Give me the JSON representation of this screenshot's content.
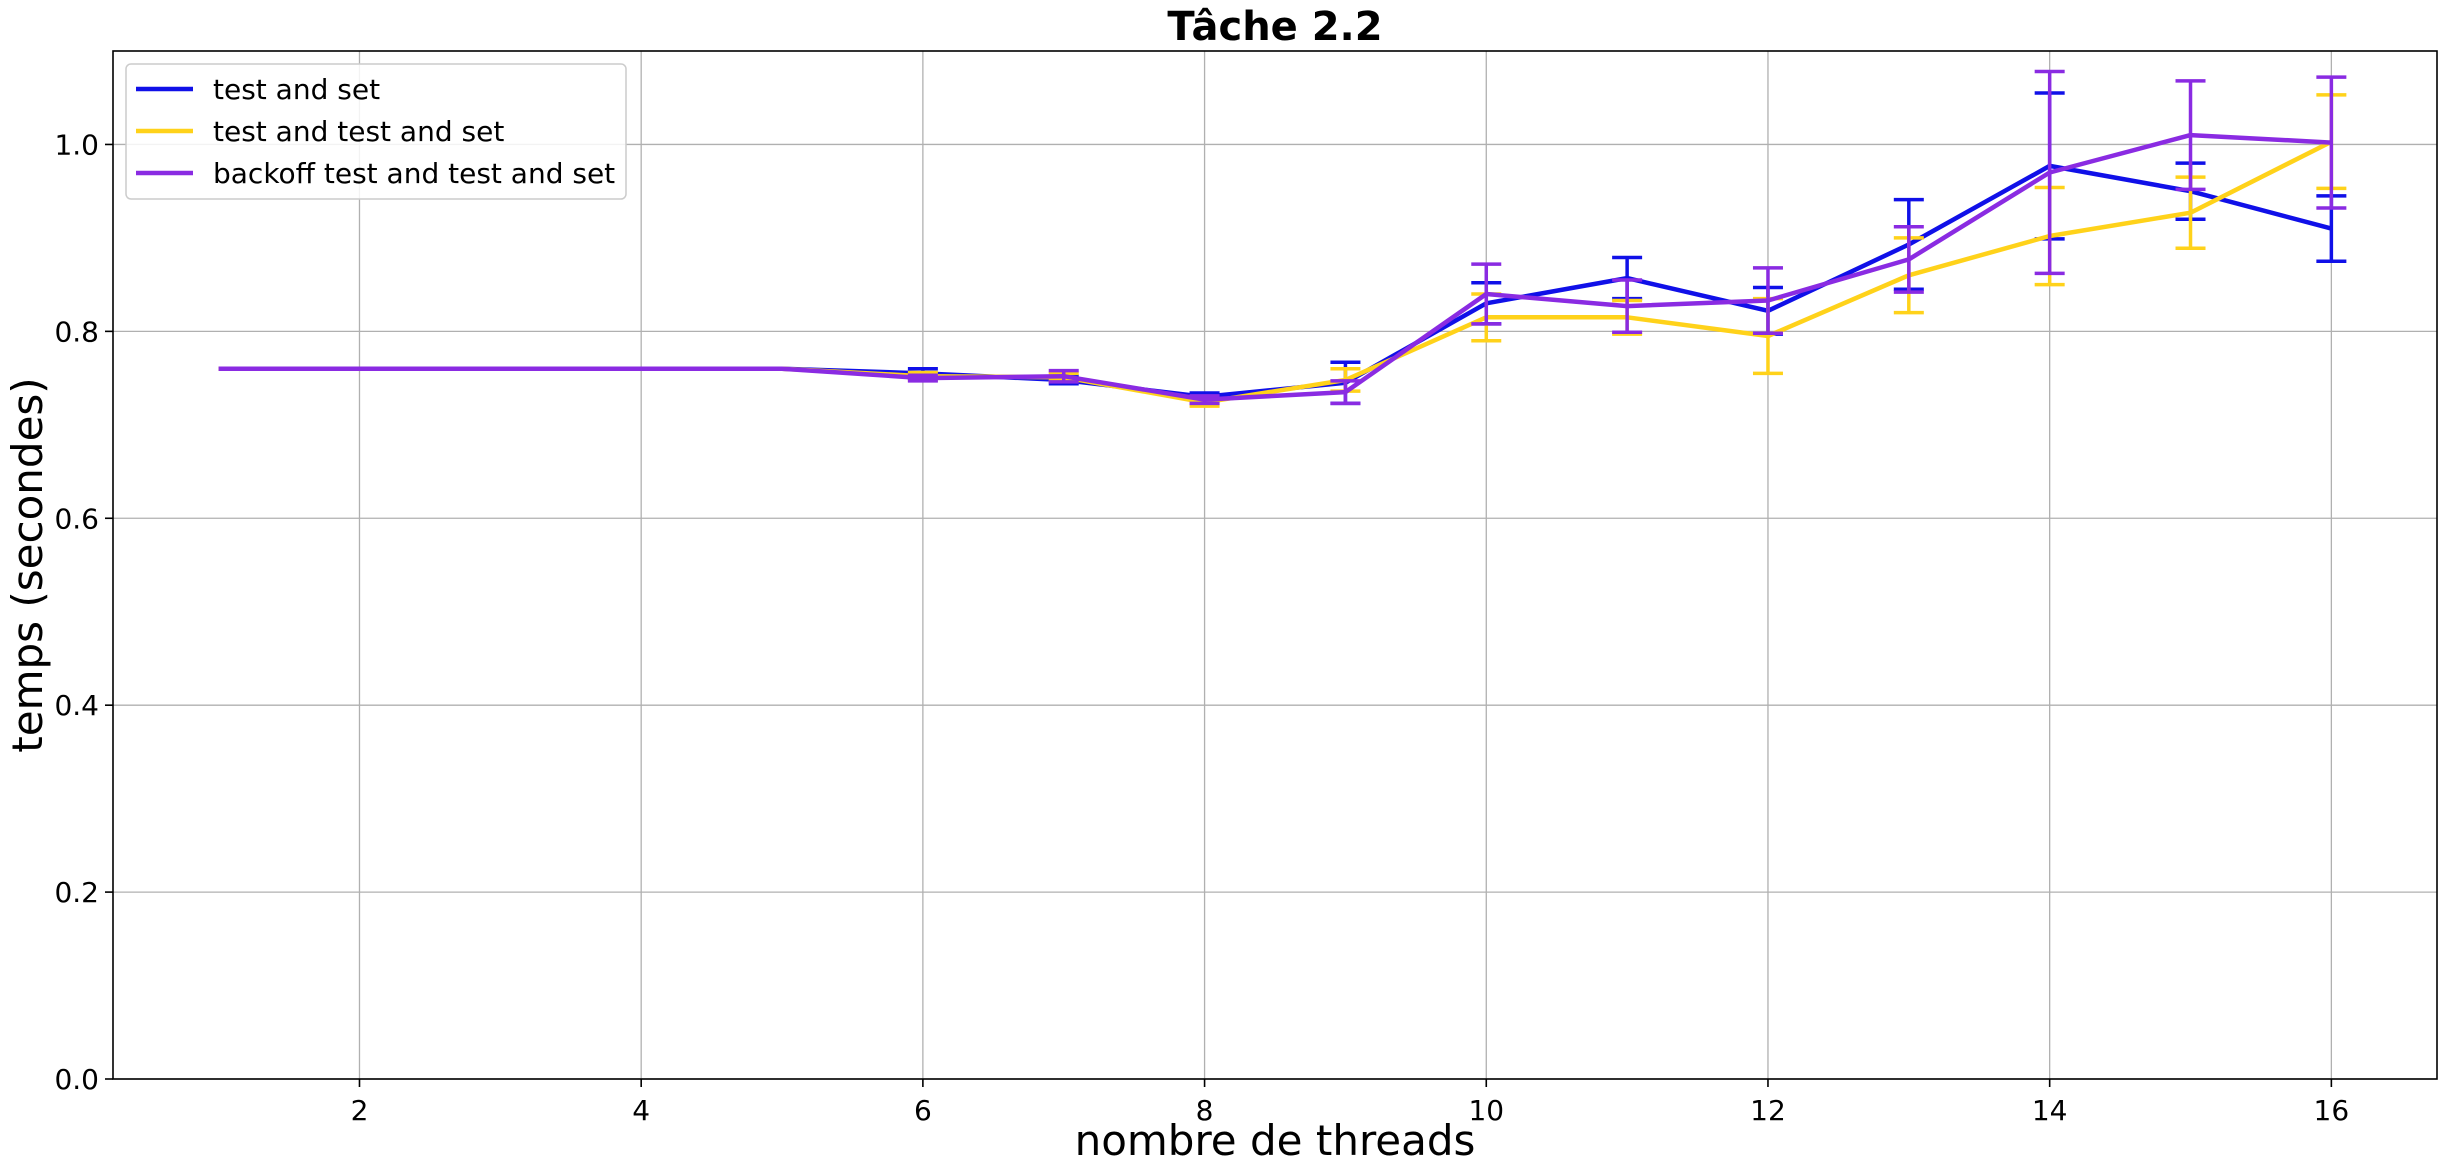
{
  "chart_data": {
    "type": "line",
    "title": "Tâche 2.2",
    "xlabel": "nombre de threads",
    "ylabel": "temps (secondes)",
    "xlim": [
      0.25,
      16.75
    ],
    "ylim": [
      0.0,
      1.1
    ],
    "x_ticks": [
      2,
      4,
      6,
      8,
      10,
      12,
      14,
      16
    ],
    "y_ticks": [
      0.0,
      0.2,
      0.4,
      0.6,
      0.8,
      1.0
    ],
    "y_tick_labels": [
      "0.0",
      "0.2",
      "0.4",
      "0.6",
      "0.8",
      "1.0"
    ],
    "grid": true,
    "legend_position": "top-left",
    "x": [
      1,
      2,
      3,
      4,
      5,
      6,
      7,
      8,
      9,
      10,
      11,
      12,
      13,
      14,
      15,
      16
    ],
    "series": [
      {
        "name": "test and set",
        "color": "#1010e8",
        "values": [
          0.76,
          0.76,
          0.76,
          0.76,
          0.76,
          0.755,
          0.748,
          0.73,
          0.745,
          0.83,
          0.857,
          0.822,
          0.893,
          0.977,
          0.95,
          0.91
        ],
        "errors": [
          0.0,
          0.0,
          0.0,
          0.0,
          0.0,
          0.005,
          0.004,
          0.004,
          0.022,
          0.022,
          0.022,
          0.025,
          0.048,
          0.078,
          0.03,
          0.035
        ]
      },
      {
        "name": "test and test and set",
        "color": "#ffd21a",
        "values": [
          0.76,
          0.76,
          0.76,
          0.76,
          0.76,
          0.752,
          0.751,
          0.724,
          0.748,
          0.815,
          0.815,
          0.795,
          0.86,
          0.902,
          0.927,
          1.003
        ],
        "errors": [
          0.0,
          0.0,
          0.0,
          0.0,
          0.0,
          0.004,
          0.004,
          0.004,
          0.012,
          0.025,
          0.018,
          0.04,
          0.04,
          0.052,
          0.038,
          0.05
        ]
      },
      {
        "name": "backoff test and test and set",
        "color": "#8a2be2",
        "values": [
          0.76,
          0.76,
          0.76,
          0.76,
          0.76,
          0.75,
          0.752,
          0.727,
          0.735,
          0.84,
          0.827,
          0.833,
          0.877,
          0.97,
          1.01,
          1.002
        ],
        "errors": [
          0.0,
          0.0,
          0.0,
          0.0,
          0.0,
          0.003,
          0.006,
          0.004,
          0.012,
          0.032,
          0.028,
          0.035,
          0.035,
          0.108,
          0.058,
          0.07
        ]
      }
    ]
  }
}
